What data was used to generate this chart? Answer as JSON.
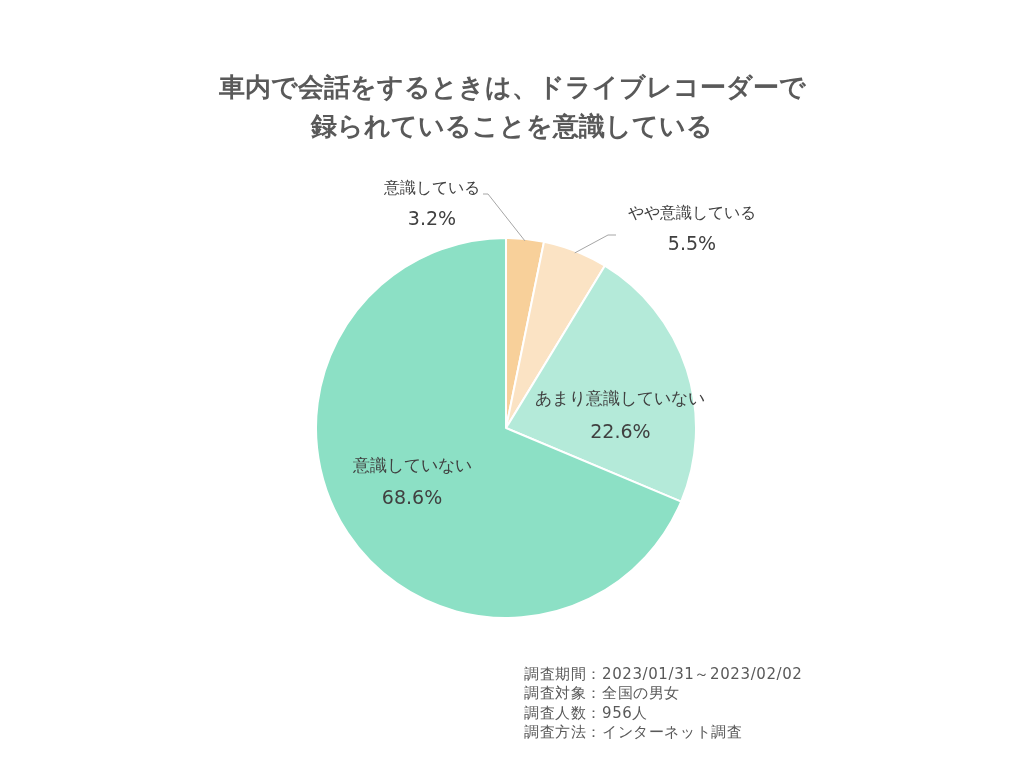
{
  "chart_data": {
    "type": "pie",
    "title": "車内で会話をするときは、ドライブレコーダーで録られていることを意識している",
    "categories": [
      "意識している",
      "やや意識している",
      "あまり意識していない",
      "意識していない"
    ],
    "values": [
      3.2,
      5.5,
      22.6,
      68.6
    ],
    "colors": [
      "#f8d09a",
      "#fbe3c4",
      "#b4ead9",
      "#8ce0c5"
    ],
    "value_labels": [
      "3.2%",
      "5.5%",
      "22.6%",
      "68.6%"
    ],
    "annotations": [
      "調査期間：2023/01/31～2023/02/02",
      "調査対象：全国の男女",
      "調査人数：956人",
      "調査方法：インターネット調査"
    ]
  }
}
